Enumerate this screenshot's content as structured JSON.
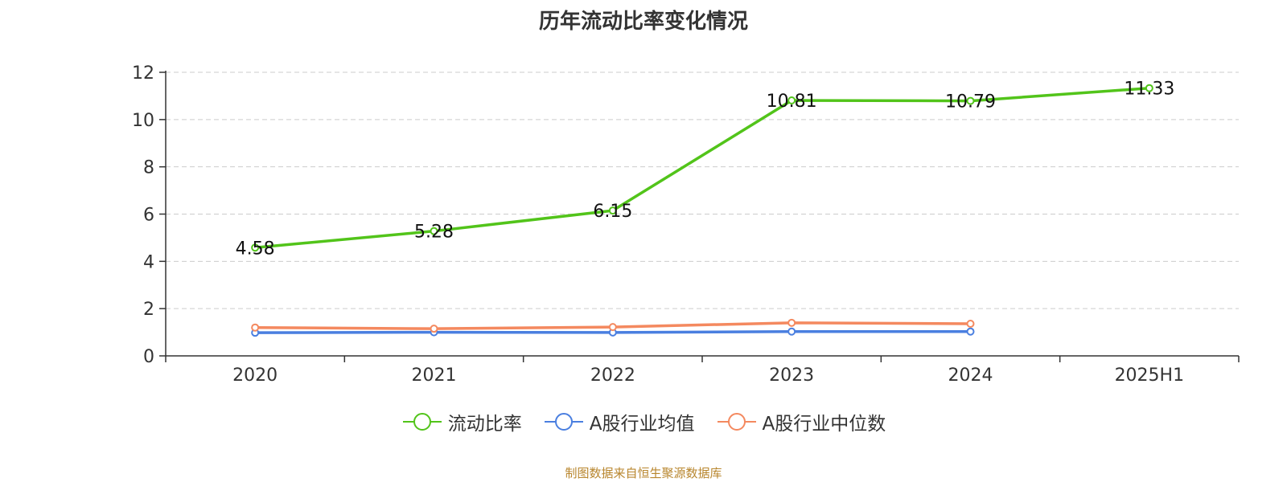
{
  "chart_data": {
    "type": "line",
    "title": "历年流动比率变化情况",
    "categories": [
      "2020",
      "2021",
      "2022",
      "2023",
      "2024",
      "2025H1"
    ],
    "ylim": [
      0,
      12
    ],
    "yticks": [
      0,
      2,
      4,
      6,
      8,
      10,
      12
    ],
    "grid": true,
    "legend_position": "bottom",
    "series": [
      {
        "name": "流动比率",
        "color": "#52c41a",
        "values": [
          4.58,
          5.28,
          6.15,
          10.81,
          10.79,
          11.33
        ],
        "data_labels": [
          "4.58",
          "5.28",
          "6.15",
          "10.81",
          "10.79",
          "11.33"
        ]
      },
      {
        "name": "A股行业均值",
        "color": "#4a7fe0",
        "values": [
          0.98,
          1.0,
          0.99,
          1.03,
          1.03,
          null
        ]
      },
      {
        "name": "A股行业中位数",
        "color": "#f4895f",
        "values": [
          1.2,
          1.15,
          1.22,
          1.4,
          1.36,
          null
        ]
      }
    ]
  },
  "source_note": "制图数据来自恒生聚源数据库"
}
